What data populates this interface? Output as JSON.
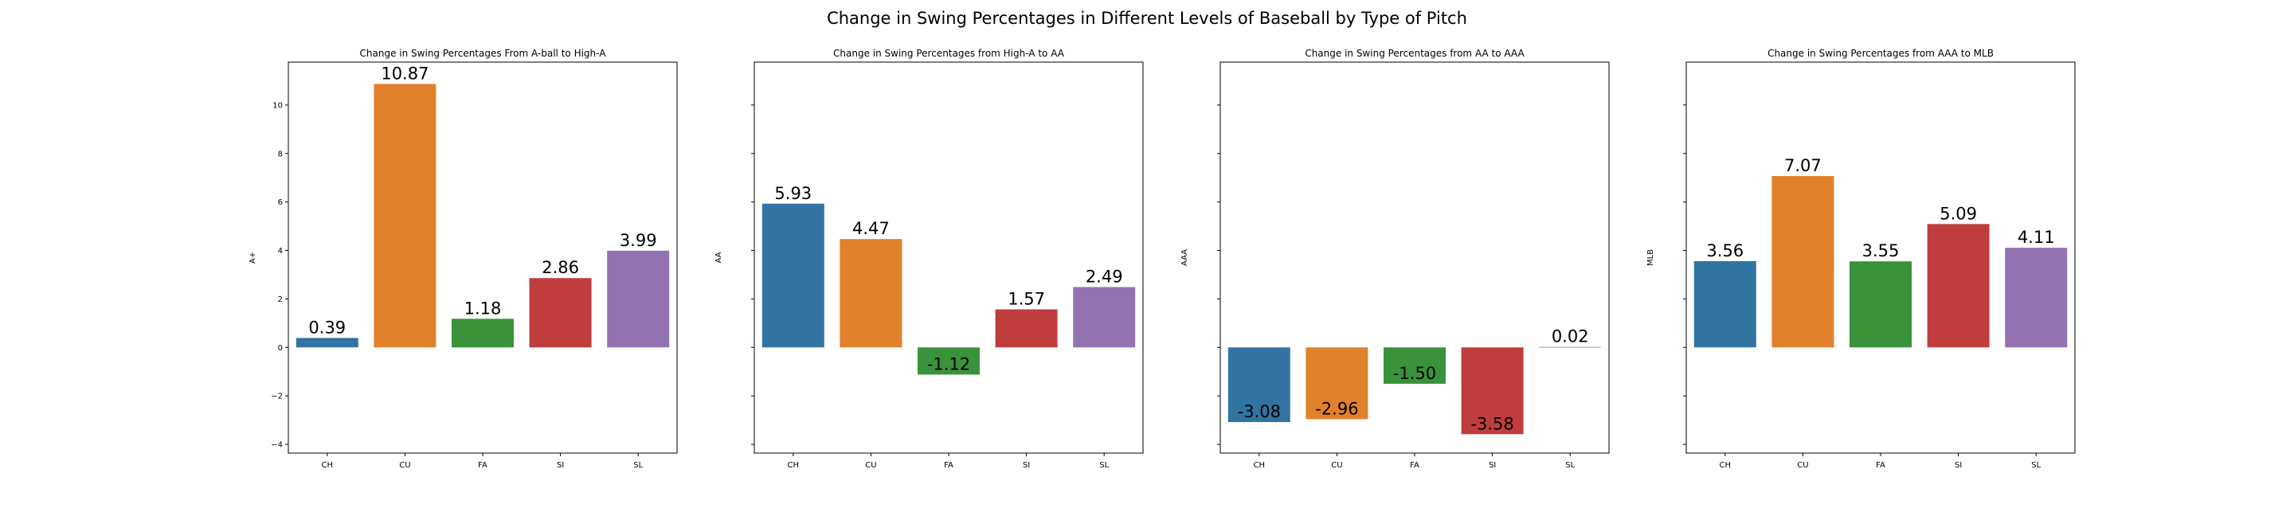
{
  "figure": {
    "suptitle": "Change in Swing Percentages in Different Levels of Baseball by Type of Pitch"
  },
  "chart_data": [
    {
      "type": "bar",
      "title": "Change in Swing Percentages From A-ball to High-A",
      "xlabel": "",
      "ylabel": "A+",
      "categories": [
        "CH",
        "CU",
        "FA",
        "SI",
        "SL"
      ],
      "values": [
        0.39,
        10.87,
        1.18,
        2.86,
        3.99
      ],
      "value_labels": [
        "0.39",
        "10.87",
        "1.18",
        "2.86",
        "3.99"
      ],
      "ylim": [
        -4.36,
        11.77
      ],
      "yticks": [
        -4,
        -2,
        0,
        2,
        4,
        6,
        8,
        10
      ],
      "ytick_labels": [
        "−4",
        "−2",
        "0",
        "2",
        "4",
        "6",
        "8",
        "10"
      ],
      "show_ytick_labels": true,
      "grid": false,
      "bar_colors": [
        "#3274a1",
        "#e1812c",
        "#3a923a",
        "#c03d3e",
        "#9372b2"
      ]
    },
    {
      "type": "bar",
      "title": "Change in Swing Percentages from High-A to AA",
      "xlabel": "",
      "ylabel": "AA",
      "categories": [
        "CH",
        "CU",
        "FA",
        "SI",
        "SL"
      ],
      "values": [
        5.93,
        4.47,
        -1.12,
        1.57,
        2.49
      ],
      "value_labels": [
        "5.93",
        "4.47",
        "-1.12",
        "1.57",
        "2.49"
      ],
      "ylim": [
        -4.36,
        11.77
      ],
      "yticks": [
        -4,
        -2,
        0,
        2,
        4,
        6,
        8,
        10
      ],
      "ytick_labels": [],
      "show_ytick_labels": false,
      "grid": false,
      "bar_colors": [
        "#3274a1",
        "#e1812c",
        "#3a923a",
        "#c03d3e",
        "#9372b2"
      ]
    },
    {
      "type": "bar",
      "title": "Change in Swing Percentages from AA to AAA",
      "xlabel": "",
      "ylabel": "AAA",
      "categories": [
        "CH",
        "CU",
        "FA",
        "SI",
        "SL"
      ],
      "values": [
        -3.08,
        -2.96,
        -1.5,
        -3.58,
        0.02
      ],
      "value_labels": [
        "-3.08",
        "-2.96",
        "-1.50",
        "-3.58",
        "0.02"
      ],
      "ylim": [
        -4.36,
        11.77
      ],
      "yticks": [
        -4,
        -2,
        0,
        2,
        4,
        6,
        8,
        10
      ],
      "ytick_labels": [],
      "show_ytick_labels": false,
      "grid": false,
      "bar_colors": [
        "#3274a1",
        "#e1812c",
        "#3a923a",
        "#c03d3e",
        "#9372b2"
      ]
    },
    {
      "type": "bar",
      "title": "Change in Swing Percentages from AAA to MLB",
      "xlabel": "",
      "ylabel": "MLB",
      "categories": [
        "CH",
        "CU",
        "FA",
        "SI",
        "SL"
      ],
      "values": [
        3.56,
        7.07,
        3.55,
        5.09,
        4.11
      ],
      "value_labels": [
        "3.56",
        "7.07",
        "3.55",
        "5.09",
        "4.11"
      ],
      "ylim": [
        -4.36,
        11.77
      ],
      "yticks": [
        -4,
        -2,
        0,
        2,
        4,
        6,
        8,
        10
      ],
      "ytick_labels": [],
      "show_ytick_labels": false,
      "grid": false,
      "bar_colors": [
        "#3274a1",
        "#e1812c",
        "#3a923a",
        "#c03d3e",
        "#9372b2"
      ]
    }
  ]
}
